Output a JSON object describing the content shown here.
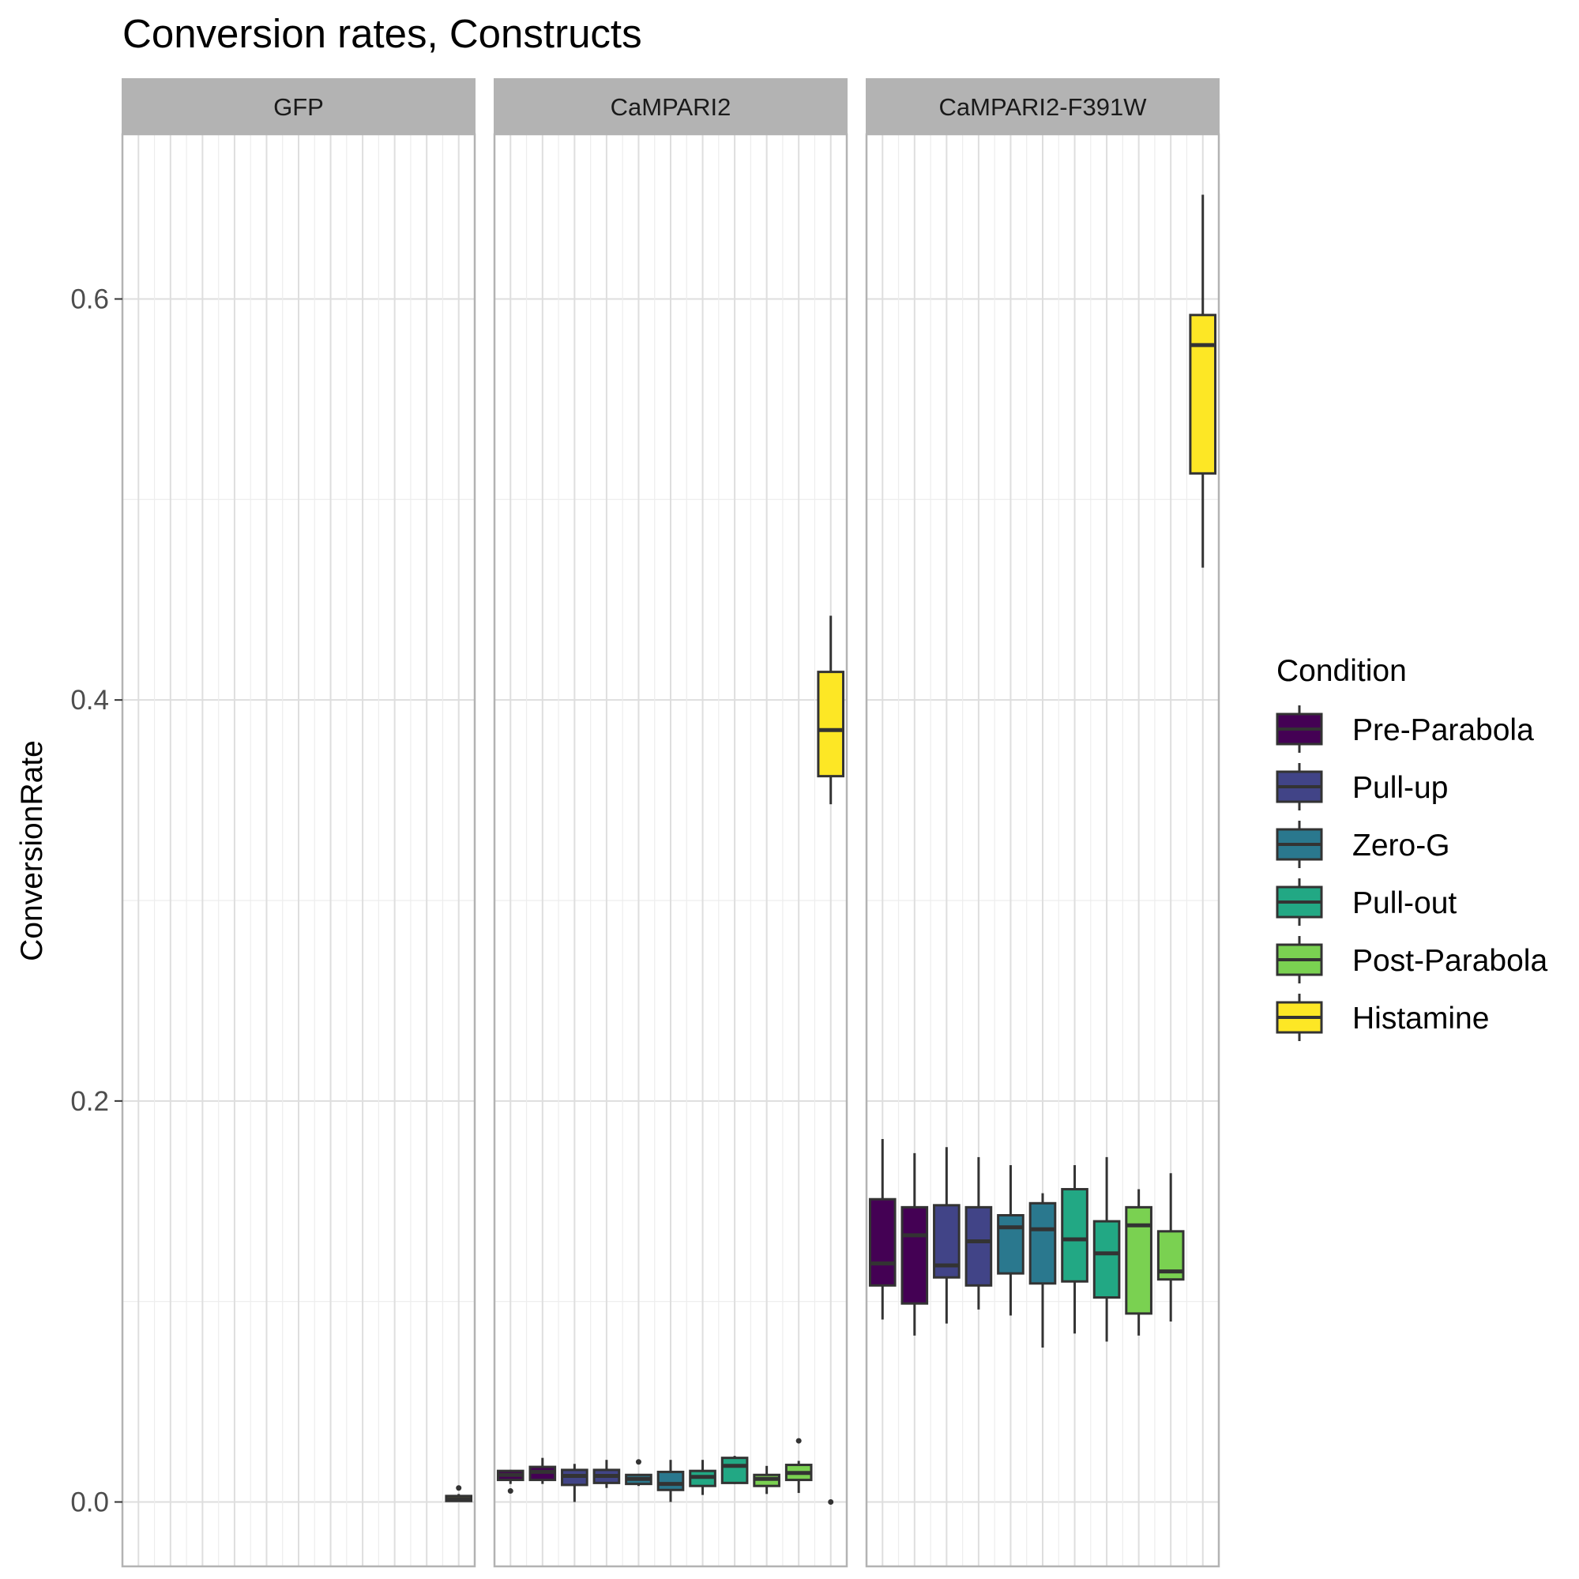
{
  "chart_data": {
    "type": "boxplot",
    "title": "Conversion rates, Constructs",
    "ylabel": "ConversionRate",
    "xlabel": "",
    "ylim": [
      -0.03,
      0.69
    ],
    "yticks": [
      0.0,
      0.2,
      0.4,
      0.6
    ],
    "ytick_labels": [
      "0.0",
      "0.2",
      "0.4",
      "0.6"
    ],
    "grid": true,
    "legend": {
      "title": "Condition",
      "position": "right",
      "entries": [
        {
          "name": "Pre-Parabola",
          "color": "#440154"
        },
        {
          "name": "Pull-up",
          "color": "#414487"
        },
        {
          "name": "Zero-G",
          "color": "#2A788E"
        },
        {
          "name": "Pull-out",
          "color": "#22A884"
        },
        {
          "name": "Post-Parabola",
          "color": "#7AD151"
        },
        {
          "name": "Histamine",
          "color": "#FDE725"
        }
      ]
    },
    "facets": [
      {
        "name": "GFP",
        "boxes": [
          {
            "slot": 10,
            "condition": "Histamine",
            "low": 0.0,
            "q1": 0.0005,
            "median": 0.0015,
            "q3": 0.003,
            "high": 0.004,
            "outliers": [
              0.007
            ]
          }
        ]
      },
      {
        "name": "CaMPARI2",
        "boxes": [
          {
            "slot": 0,
            "condition": "Pre-Parabola",
            "low": 0.009,
            "q1": 0.011,
            "median": 0.0135,
            "q3": 0.0155,
            "high": 0.016,
            "outliers": [
              0.0055
            ]
          },
          {
            "slot": 1,
            "condition": "Pre-Parabola",
            "low": 0.009,
            "q1": 0.011,
            "median": 0.015,
            "q3": 0.0175,
            "high": 0.022,
            "outliers": []
          },
          {
            "slot": 2,
            "condition": "Pull-up",
            "low": 0.0,
            "q1": 0.0085,
            "median": 0.013,
            "q3": 0.016,
            "high": 0.019,
            "outliers": []
          },
          {
            "slot": 3,
            "condition": "Pull-up",
            "low": 0.007,
            "q1": 0.0095,
            "median": 0.013,
            "q3": 0.016,
            "high": 0.021,
            "outliers": []
          },
          {
            "slot": 4,
            "condition": "Zero-G",
            "low": 0.008,
            "q1": 0.009,
            "median": 0.0115,
            "q3": 0.0135,
            "high": 0.014,
            "outliers": [
              0.02
            ]
          },
          {
            "slot": 5,
            "condition": "Zero-G",
            "low": 0.0,
            "q1": 0.006,
            "median": 0.009,
            "q3": 0.015,
            "high": 0.021,
            "outliers": []
          },
          {
            "slot": 6,
            "condition": "Pull-out",
            "low": 0.0035,
            "q1": 0.008,
            "median": 0.0125,
            "q3": 0.0155,
            "high": 0.021,
            "outliers": []
          },
          {
            "slot": 7,
            "condition": "Pull-out",
            "low": 0.009,
            "q1": 0.0095,
            "median": 0.018,
            "q3": 0.022,
            "high": 0.023,
            "outliers": []
          },
          {
            "slot": 8,
            "condition": "Post-Parabola",
            "low": 0.004,
            "q1": 0.008,
            "median": 0.0115,
            "q3": 0.0135,
            "high": 0.018,
            "outliers": []
          },
          {
            "slot": 9,
            "condition": "Post-Parabola",
            "low": 0.0045,
            "q1": 0.011,
            "median": 0.0145,
            "q3": 0.0185,
            "high": 0.0205,
            "outliers": [
              0.0305
            ]
          },
          {
            "slot": 10,
            "condition": "Histamine",
            "low": 0.348,
            "q1": 0.362,
            "median": 0.385,
            "q3": 0.414,
            "high": 0.442,
            "outliers": [
              0.0
            ]
          }
        ]
      },
      {
        "name": "CaMPARI2-F391W",
        "boxes": [
          {
            "slot": 0,
            "condition": "Pre-Parabola",
            "low": 0.091,
            "q1": 0.108,
            "median": 0.119,
            "q3": 0.151,
            "high": 0.181,
            "outliers": []
          },
          {
            "slot": 1,
            "condition": "Pre-Parabola",
            "low": 0.083,
            "q1": 0.099,
            "median": 0.133,
            "q3": 0.147,
            "high": 0.174,
            "outliers": []
          },
          {
            "slot": 2,
            "condition": "Pull-up",
            "low": 0.089,
            "q1": 0.112,
            "median": 0.118,
            "q3": 0.148,
            "high": 0.177,
            "outliers": []
          },
          {
            "slot": 3,
            "condition": "Pull-up",
            "low": 0.096,
            "q1": 0.108,
            "median": 0.13,
            "q3": 0.147,
            "high": 0.172,
            "outliers": []
          },
          {
            "slot": 4,
            "condition": "Zero-G",
            "low": 0.093,
            "q1": 0.114,
            "median": 0.137,
            "q3": 0.143,
            "high": 0.168,
            "outliers": []
          },
          {
            "slot": 5,
            "condition": "Zero-G",
            "low": 0.077,
            "q1": 0.109,
            "median": 0.136,
            "q3": 0.149,
            "high": 0.154,
            "outliers": []
          },
          {
            "slot": 6,
            "condition": "Pull-out",
            "low": 0.084,
            "q1": 0.11,
            "median": 0.131,
            "q3": 0.156,
            "high": 0.168,
            "outliers": []
          },
          {
            "slot": 7,
            "condition": "Pull-out",
            "low": 0.08,
            "q1": 0.102,
            "median": 0.124,
            "q3": 0.14,
            "high": 0.172,
            "outliers": []
          },
          {
            "slot": 8,
            "condition": "Post-Parabola",
            "low": 0.083,
            "q1": 0.094,
            "median": 0.138,
            "q3": 0.147,
            "high": 0.156,
            "outliers": []
          },
          {
            "slot": 9,
            "condition": "Post-Parabola",
            "low": 0.09,
            "q1": 0.111,
            "median": 0.115,
            "q3": 0.135,
            "high": 0.164,
            "outliers": []
          },
          {
            "slot": 10,
            "condition": "Histamine",
            "low": 0.466,
            "q1": 0.513,
            "median": 0.577,
            "q3": 0.592,
            "high": 0.652,
            "outliers": []
          }
        ]
      }
    ]
  }
}
